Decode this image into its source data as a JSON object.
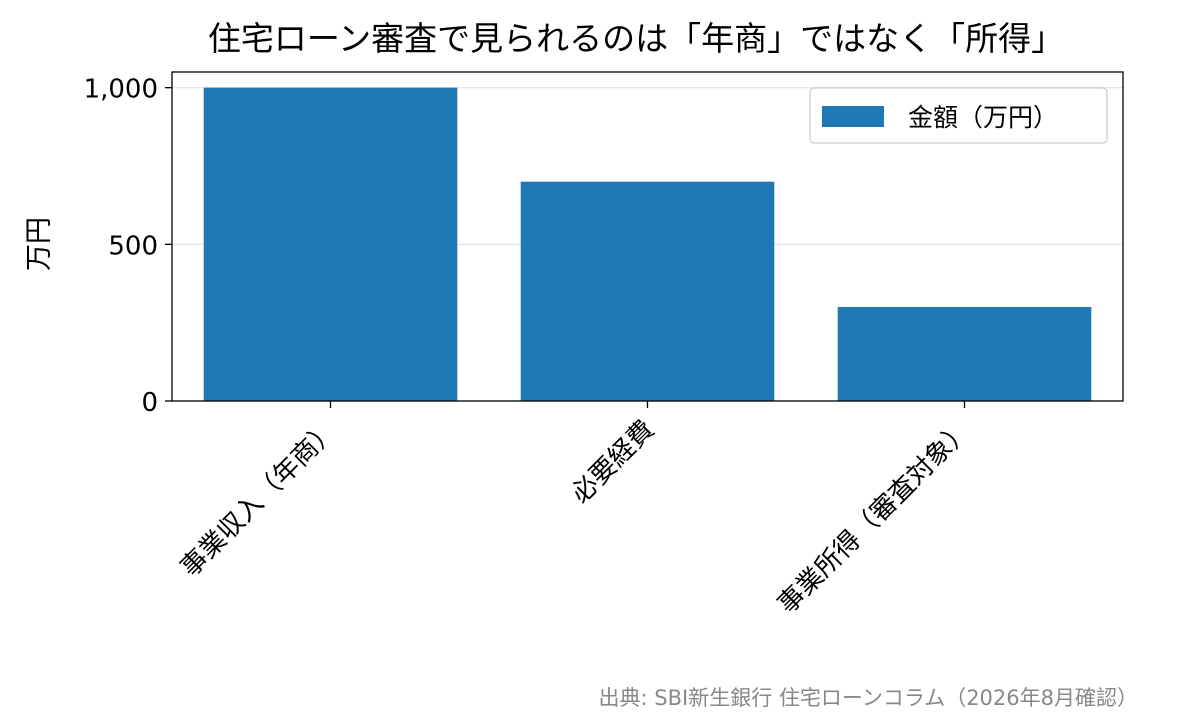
{
  "chart_data": {
    "type": "bar",
    "title": "住宅ローン審査で見られるのは「年商」ではなく「所得」",
    "ylabel": "万円",
    "xlabel": "",
    "categories": [
      "事業収入（年商）",
      "必要経費",
      "事業所得（審査対象）"
    ],
    "series": [
      {
        "name": "金額（万円）",
        "values": [
          1000,
          700,
          300
        ],
        "color": "#1f77b4"
      }
    ],
    "ylim": [
      0,
      1050
    ],
    "yticks": [
      0,
      500,
      1000
    ],
    "ytick_labels": [
      "0",
      "500",
      "1,000"
    ],
    "grid": "y",
    "legend_position": "top-right",
    "source": "出典: SBI新生銀行 住宅ローンコラム（2026年8月確認）"
  }
}
